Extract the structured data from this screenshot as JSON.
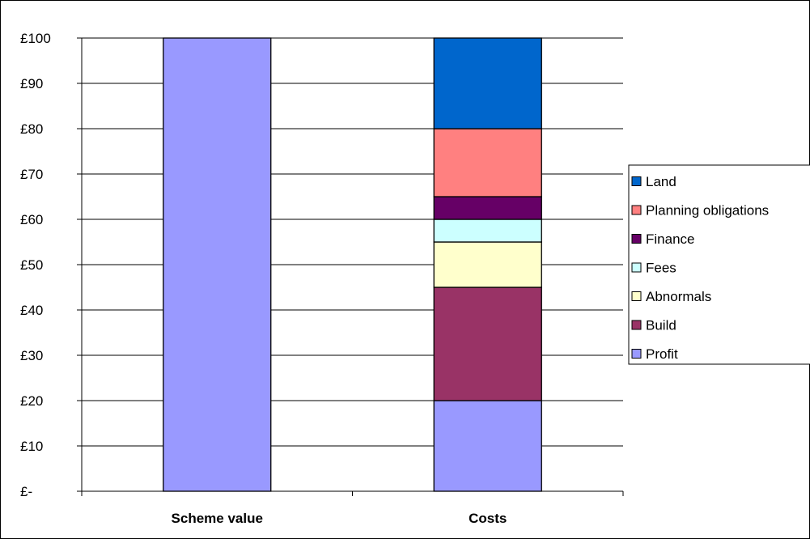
{
  "chart_data": {
    "type": "bar",
    "stacked": true,
    "categories": [
      "Scheme value",
      "Costs"
    ],
    "series": [
      {
        "name": "Profit",
        "values": [
          100,
          20
        ],
        "color": "#9999ff"
      },
      {
        "name": "Build",
        "values": [
          0,
          25
        ],
        "color": "#993366"
      },
      {
        "name": "Abnormals",
        "values": [
          0,
          10
        ],
        "color": "#ffffcc"
      },
      {
        "name": "Fees",
        "values": [
          0,
          5
        ],
        "color": "#ccffff"
      },
      {
        "name": "Finance",
        "values": [
          0,
          5
        ],
        "color": "#660066"
      },
      {
        "name": "Planning obligations",
        "values": [
          0,
          15
        ],
        "color": "#ff8080"
      },
      {
        "name": "Land",
        "values": [
          0,
          20
        ],
        "color": "#0066cc"
      }
    ],
    "ylim": [
      0,
      100
    ],
    "ytick_values": [
      0,
      10,
      20,
      30,
      40,
      50,
      60,
      70,
      80,
      90,
      100
    ],
    "ytick_labels": [
      "£-",
      "£10",
      "£20",
      "£30",
      "£40",
      "£50",
      "£60",
      "£70",
      "£80",
      "£90",
      "£100"
    ],
    "legend_order": [
      "Land",
      "Planning obligations",
      "Finance",
      "Fees",
      "Abnormals",
      "Build",
      "Profit"
    ],
    "legend_position": "right",
    "grid": true
  }
}
